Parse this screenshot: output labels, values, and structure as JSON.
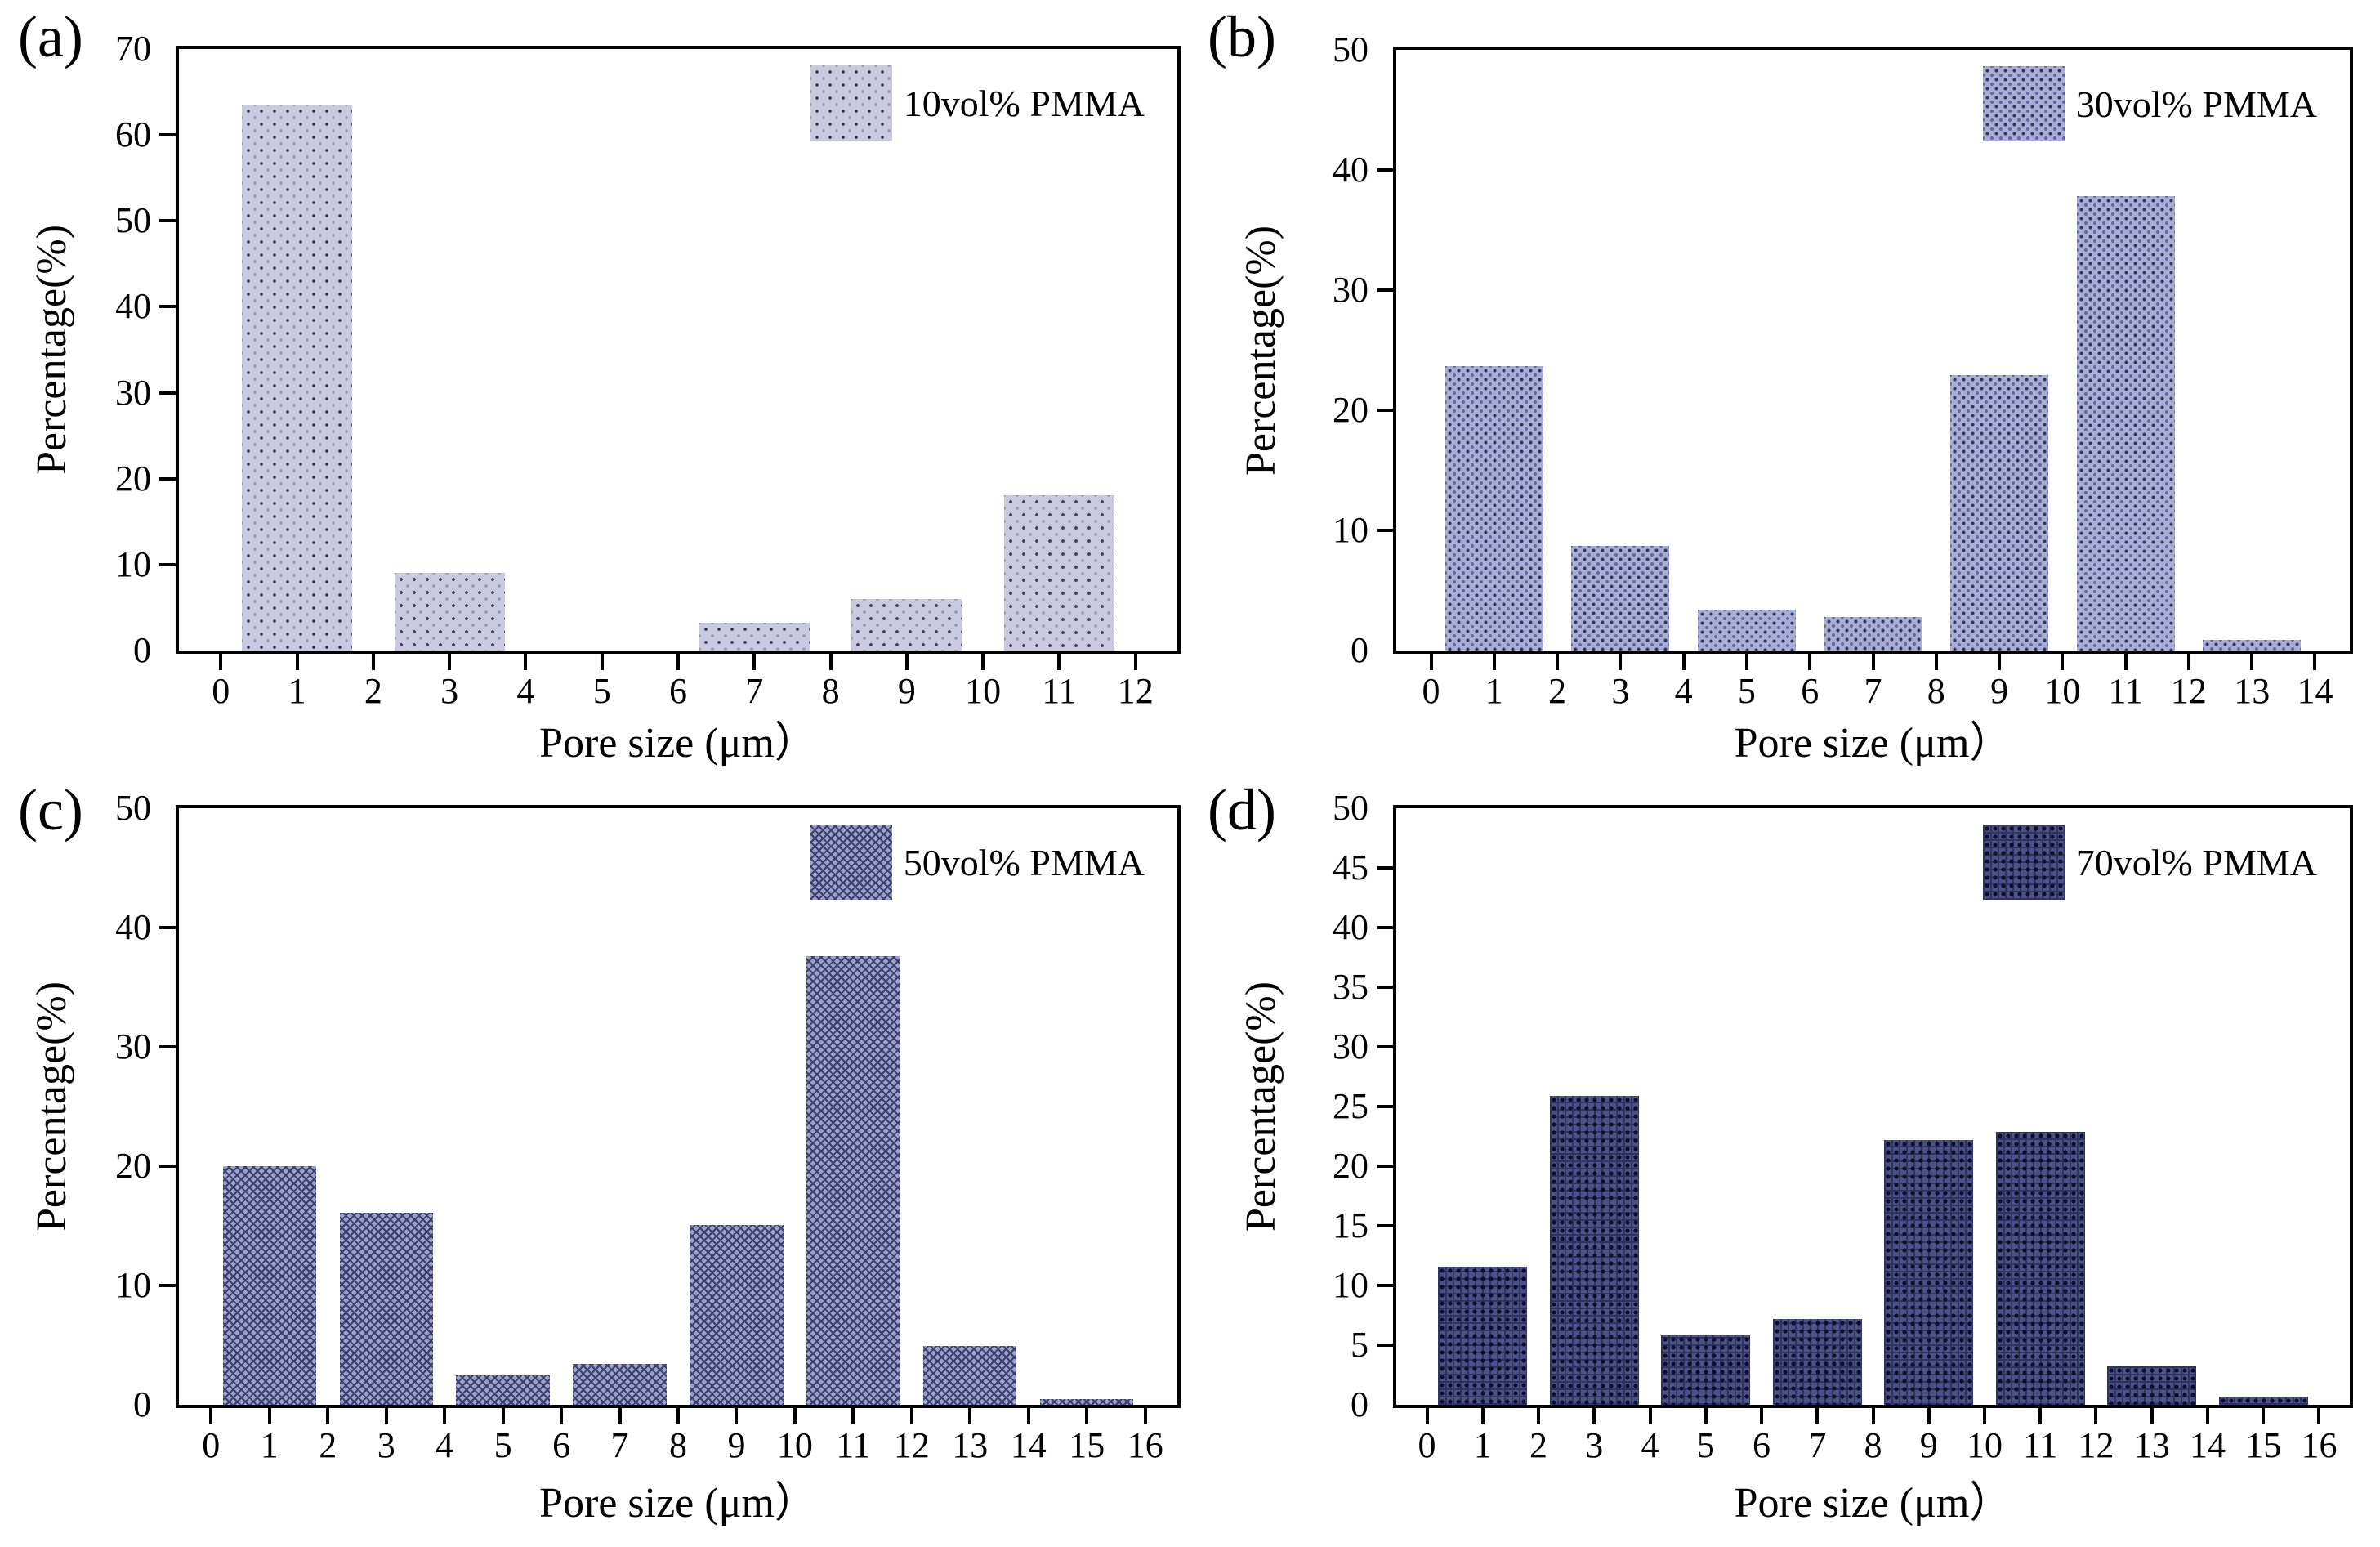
{
  "figure_title": "",
  "axis": {
    "xlabel": "Pore size (μm）",
    "ylabel": "Percentage(%)"
  },
  "chart_data": [
    {
      "type": "bar",
      "panel_label": "(a)",
      "legend": "10vol% PMMA",
      "xlabel": "Pore size (μm）",
      "ylabel": "Percentage(%)",
      "x": [
        1,
        3,
        7,
        9,
        11
      ],
      "values": [
        63.5,
        9.0,
        3.2,
        6.0,
        18.1
      ],
      "xlim": [
        0,
        12
      ],
      "xtick_step": 1,
      "ylim": [
        0,
        70
      ],
      "ytick_step": 10,
      "bar_width": 1.45,
      "pattern": "dots-sparse",
      "colors": {
        "base": "#c9cadf",
        "accent": "#3f436b",
        "accent2": "#989cc0"
      },
      "legend_position": "top-right",
      "grid": false
    },
    {
      "type": "bar",
      "panel_label": "(b)",
      "legend": "30vol% PMMA",
      "xlabel": "Pore size (μm）",
      "ylabel": "Percentage(%)",
      "x": [
        1,
        3,
        5,
        7,
        9,
        11,
        13
      ],
      "values": [
        23.7,
        8.7,
        3.4,
        2.8,
        22.9,
        37.8,
        0.9
      ],
      "xlim": [
        0,
        14
      ],
      "xtick_step": 1,
      "ylim": [
        0,
        50
      ],
      "ytick_step": 10,
      "bar_width": 1.55,
      "pattern": "dots-dense",
      "colors": {
        "base": "#a9aed6",
        "accent": "#333860",
        "accent2": "#646a9f"
      },
      "legend_position": "top-right",
      "grid": false
    },
    {
      "type": "bar",
      "panel_label": "(c)",
      "legend": "50vol% PMMA",
      "xlabel": "Pore size (μm）",
      "ylabel": "Percentage(%)",
      "x": [
        1,
        3,
        5,
        7,
        9,
        11,
        13,
        15
      ],
      "values": [
        20.0,
        16.1,
        2.5,
        3.4,
        15.1,
        37.6,
        4.9,
        0.5
      ],
      "xlim": [
        0,
        16
      ],
      "xtick_step": 1,
      "ylim": [
        0,
        50
      ],
      "ytick_step": 10,
      "bar_width": 1.6,
      "pattern": "crosshatch",
      "colors": {
        "base": "#9ba1cd",
        "accent": "#3a3f6b",
        "accent2": "#7d82b0"
      },
      "legend_position": "top-right",
      "grid": false
    },
    {
      "type": "bar",
      "panel_label": "(d)",
      "legend": "70vol% PMMA",
      "xlabel": "Pore size (μm）",
      "ylabel": "Percentage(%)",
      "x": [
        1,
        3,
        5,
        7,
        9,
        11,
        13,
        15
      ],
      "values": [
        11.6,
        25.9,
        5.8,
        7.2,
        22.2,
        22.9,
        3.2,
        0.7
      ],
      "xlim": [
        0,
        16
      ],
      "xtick_step": 1,
      "ylim": [
        0,
        50
      ],
      "ytick_step": 5,
      "bar_width": 1.6,
      "pattern": "grid-dark",
      "colors": {
        "base": "#4c5286",
        "accent": "#0b0e2c",
        "accent2": "#2e3460"
      },
      "legend_position": "top-right",
      "grid": false
    }
  ]
}
